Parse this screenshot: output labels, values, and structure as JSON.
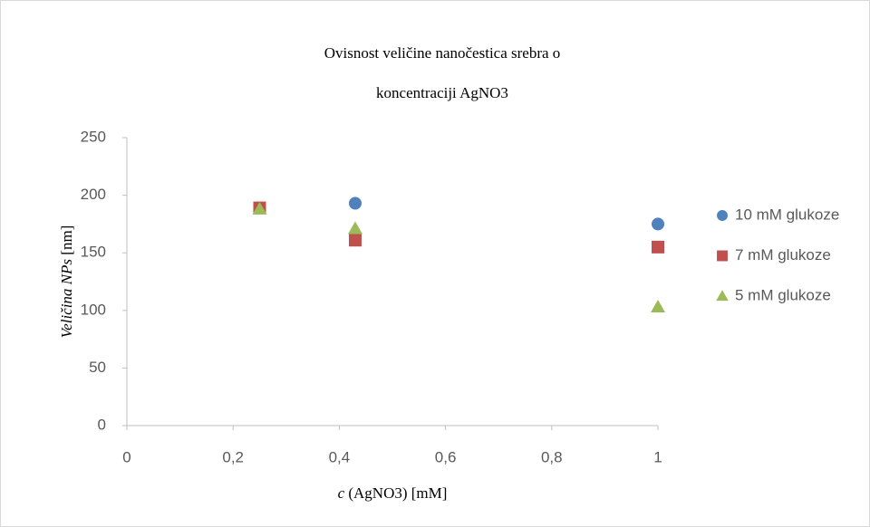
{
  "chart_data": {
    "type": "scatter",
    "title": [
      "Ovisnost veličine nanočestica srebra o",
      "koncentraciji AgNO3"
    ],
    "xlabel": [
      "c",
      " (AgNO3) [mM]"
    ],
    "xlabel_italic": [
      true,
      false
    ],
    "ylabel": [
      "Veličina NPs",
      " [nm]"
    ],
    "ylabel_italic": [
      true,
      false
    ],
    "xlim": [
      0,
      1
    ],
    "xticks": [
      0,
      {
        "value": 0.2,
        "label": "0,2"
      },
      {
        "value": 0.4,
        "label": "0,4"
      },
      {
        "value": 0.6,
        "label": "0,6"
      },
      {
        "value": 0.8,
        "label": "0,8"
      },
      1
    ],
    "ylim": [
      0,
      250
    ],
    "yticks": [
      0,
      50,
      100,
      150,
      200,
      250
    ],
    "grid": false,
    "legend": "right",
    "series": [
      {
        "name": "10 mM glukoze",
        "color": "#4f81bd",
        "marker": "circle",
        "x": [
          0.25,
          0.43,
          1
        ],
        "values": [
          189,
          193,
          175
        ]
      },
      {
        "name": "7 mM glukoze",
        "color": "#c0504d",
        "marker": "square",
        "x": [
          0.25,
          0.43,
          1
        ],
        "values": [
          189,
          161,
          155
        ]
      },
      {
        "name": "5 mM glukoze",
        "color": "#9bbb59",
        "marker": "triangle",
        "x": [
          0.25,
          0.43,
          1
        ],
        "values": [
          188,
          171,
          103
        ]
      }
    ]
  }
}
